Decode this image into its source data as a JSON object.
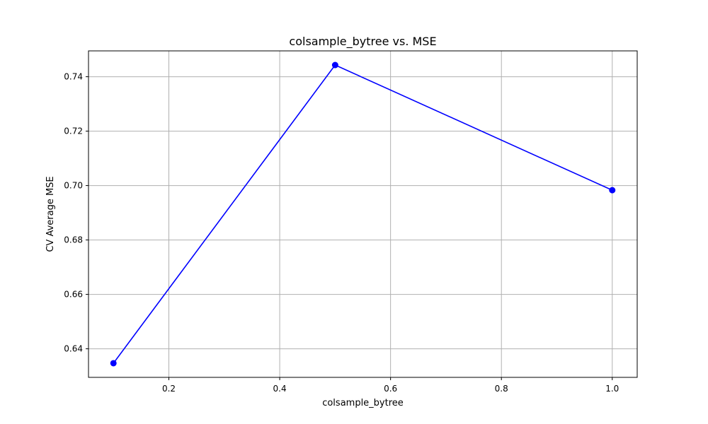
{
  "chart_data": {
    "type": "line",
    "title": "colsample_bytree vs. MSE",
    "xlabel": "colsample_bytree",
    "ylabel": "CV Average MSE",
    "xlim": [
      0.055,
      1.045
    ],
    "ylim": [
      0.6295,
      0.7495
    ],
    "xticks": [
      0.2,
      0.4,
      0.6,
      0.8,
      1.0
    ],
    "xtick_labels": [
      "0.2",
      "0.4",
      "0.6",
      "0.8",
      "1.0"
    ],
    "yticks": [
      0.64,
      0.66,
      0.68,
      0.7,
      0.72,
      0.74
    ],
    "ytick_labels": [
      "0.64",
      "0.66",
      "0.68",
      "0.70",
      "0.72",
      "0.74"
    ],
    "grid": true,
    "series": [
      {
        "x": [
          0.1,
          0.5,
          1.0
        ],
        "y": [
          0.6347,
          0.7443,
          0.6983
        ],
        "color": "#0000ff",
        "marker": "circle"
      }
    ]
  }
}
